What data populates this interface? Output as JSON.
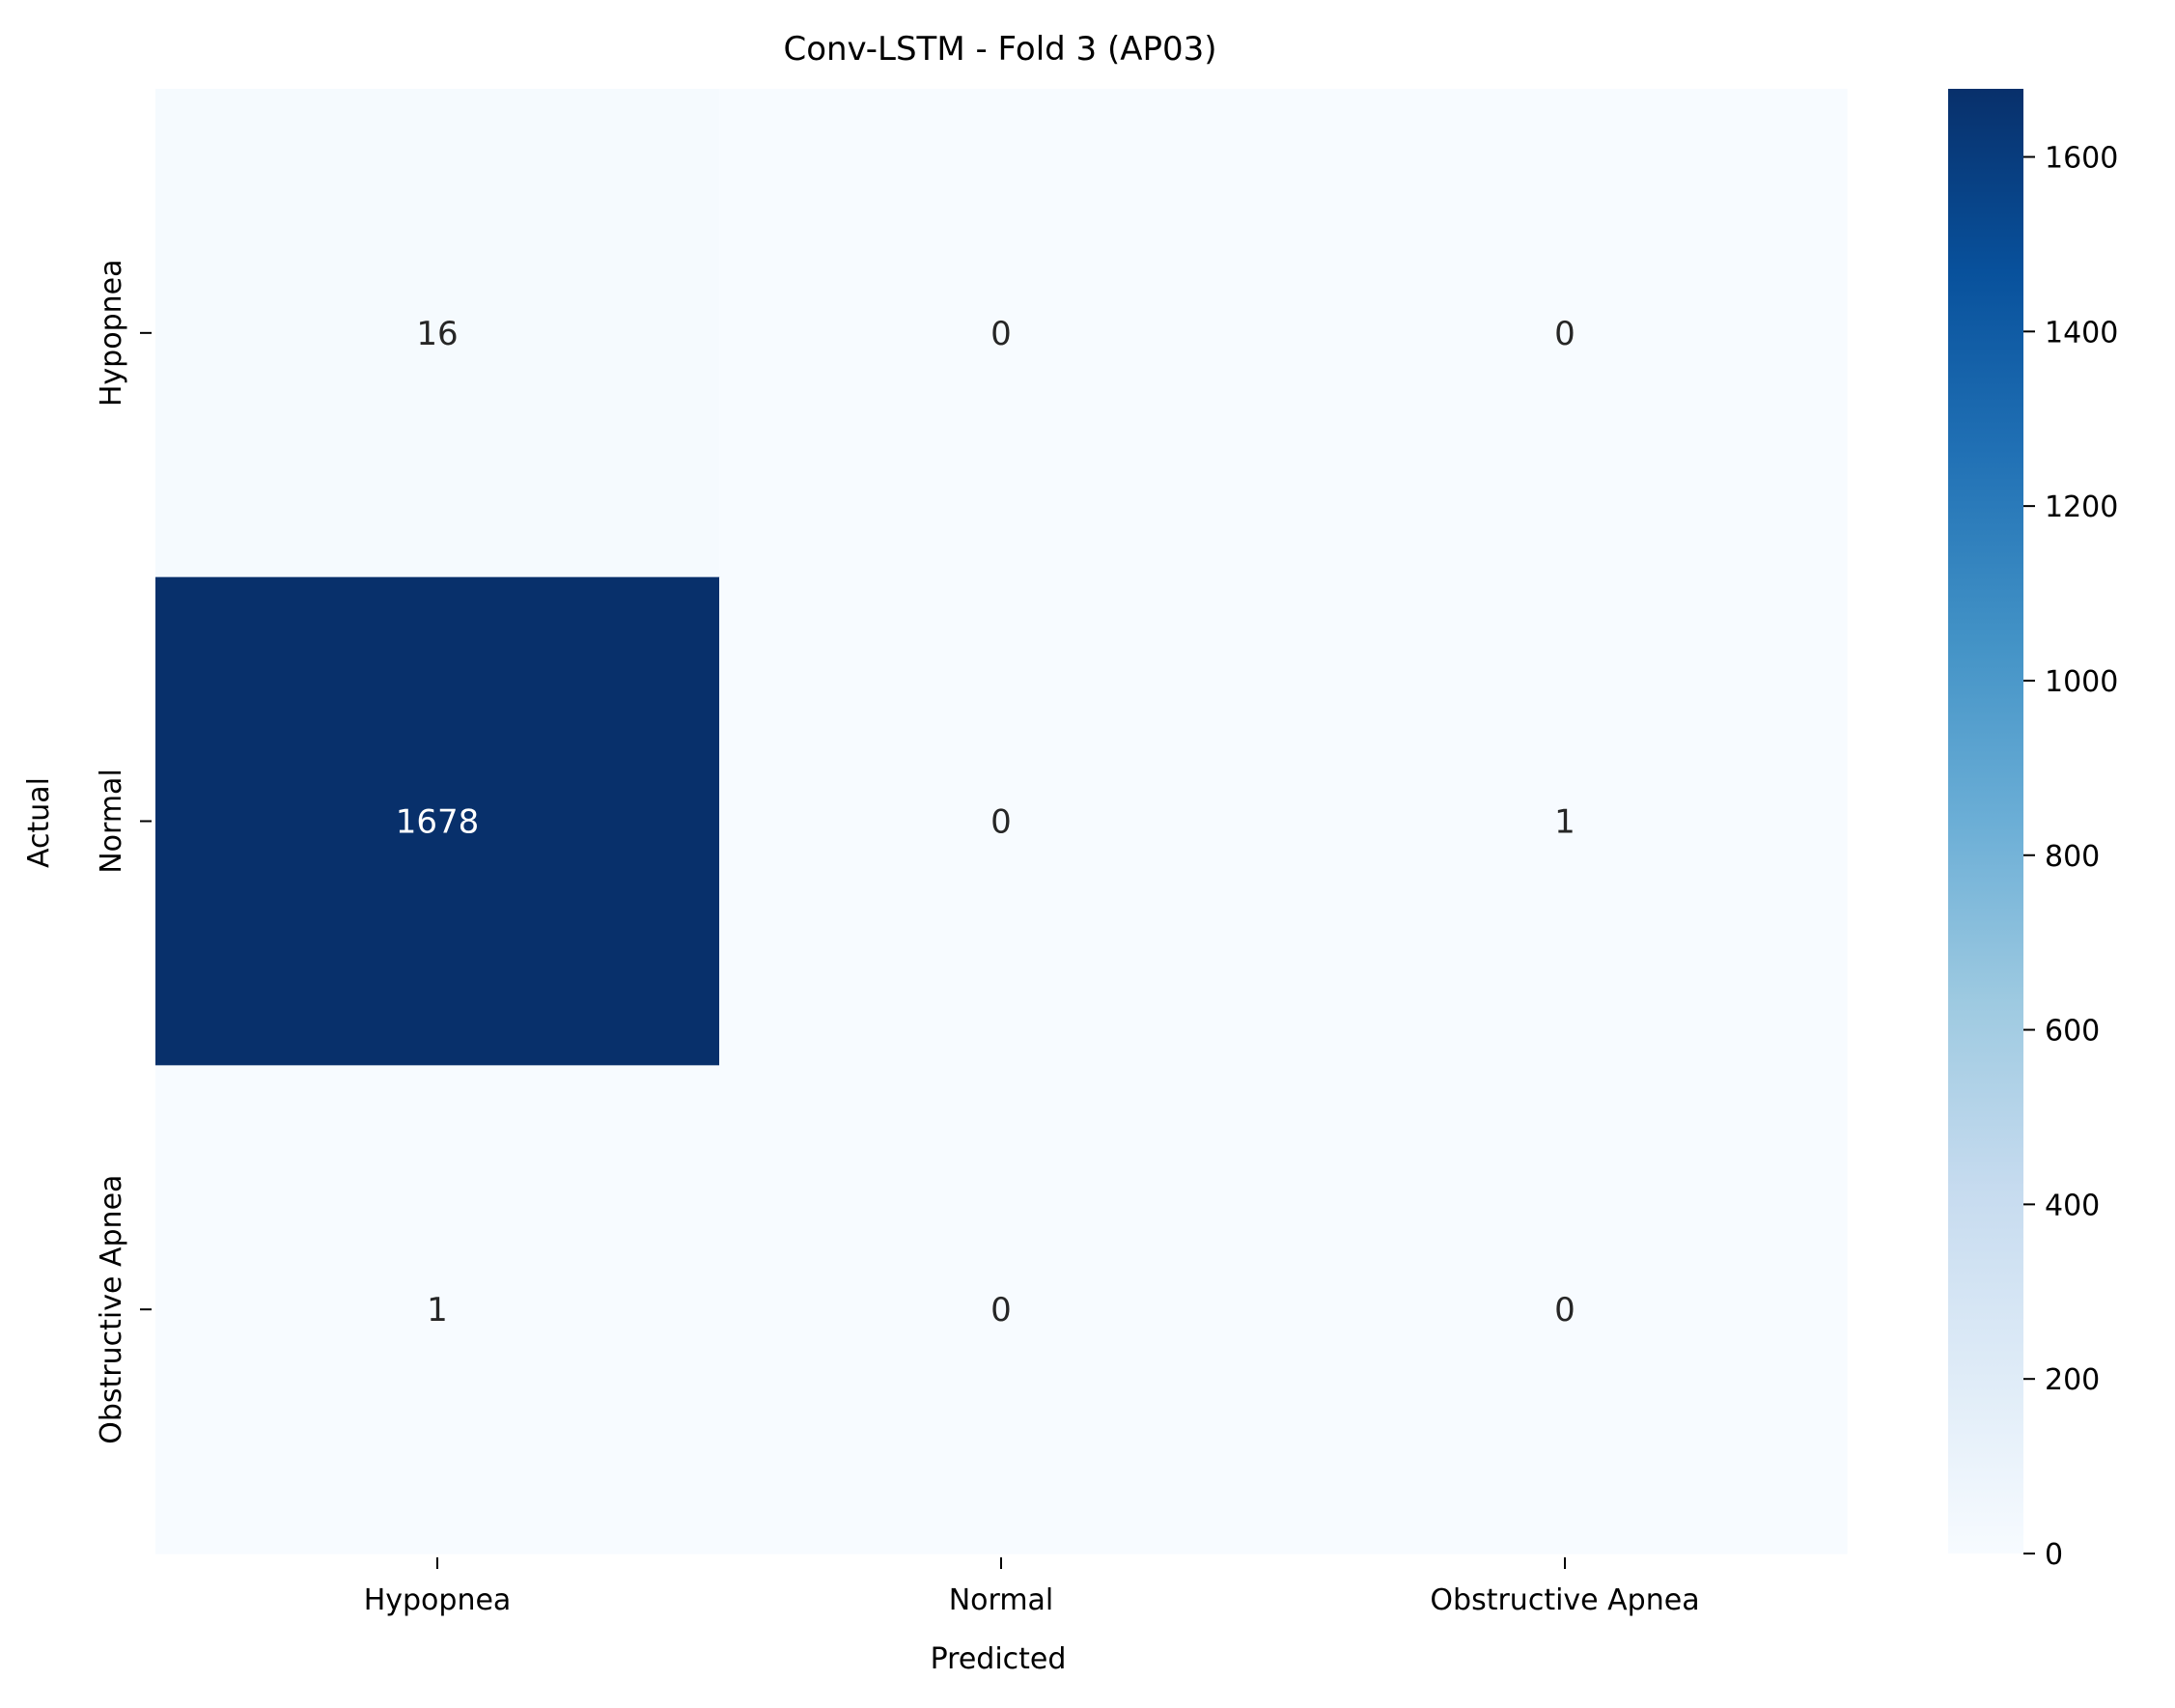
{
  "chart_data": {
    "type": "heatmap",
    "title": "Conv-LSTM - Fold 3 (AP03)",
    "xlabel": "Predicted",
    "ylabel": "Actual",
    "x_categories": [
      "Hypopnea",
      "Normal",
      "Obstructive Apnea"
    ],
    "y_categories": [
      "Hypopnea",
      "Normal",
      "Obstructive Apnea"
    ],
    "matrix": [
      [
        16,
        0,
        0
      ],
      [
        1678,
        0,
        1
      ],
      [
        1,
        0,
        0
      ]
    ],
    "colormap": "Blues",
    "color_range": [
      0,
      1678
    ],
    "colorbar_ticks": [
      0,
      200,
      400,
      600,
      800,
      1000,
      1200,
      1400,
      1600
    ],
    "colors": {
      "low": "#f7fbff",
      "high": "#08306b",
      "text_dark": "#262626",
      "text_light": "#ffffff",
      "axis": "#000000"
    }
  }
}
